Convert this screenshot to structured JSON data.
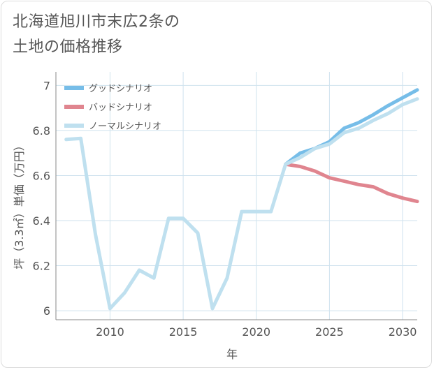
{
  "header": {
    "title": "北海道旭川市末広2条の\n土地の価格推移"
  },
  "colors": {
    "good": "#76bde8",
    "bad": "#e0858f",
    "normal": "#bfe0ef",
    "grid": "#cfe2ee",
    "axis": "#888888"
  },
  "chart_data": {
    "type": "line",
    "title": "北海道旭川市末広2条の土地の価格推移",
    "xlabel": "年",
    "ylabel": "坪（3.3㎡）単価（万円）",
    "xlim": [
      2006.3,
      2031
    ],
    "ylim": [
      5.96,
      7.06
    ],
    "x_ticks": [
      2010,
      2015,
      2020,
      2025,
      2030
    ],
    "y_ticks": [
      6,
      6.2,
      6.4,
      6.6,
      6.8,
      7
    ],
    "grid": true,
    "legend_position": "top-left",
    "series": [
      {
        "name": "グッドシナリオ",
        "x": [
          2022,
          2023,
          2024,
          2025,
          2026,
          2027,
          2028,
          2029,
          2030,
          2031
        ],
        "y": [
          6.65,
          6.7,
          6.72,
          6.75,
          6.81,
          6.835,
          6.87,
          6.91,
          6.945,
          6.98
        ]
      },
      {
        "name": "バッドシナリオ",
        "x": [
          2022,
          2023,
          2024,
          2025,
          2026,
          2027,
          2028,
          2029,
          2030,
          2031
        ],
        "y": [
          6.65,
          6.64,
          6.62,
          6.59,
          6.575,
          6.56,
          6.55,
          6.52,
          6.5,
          6.485
        ]
      },
      {
        "name": "ノーマルシナリオ",
        "x": [
          2007,
          2008,
          2009,
          2010,
          2011,
          2012,
          2013,
          2014,
          2015,
          2016,
          2017,
          2018,
          2019,
          2020,
          2021,
          2022,
          2023,
          2024,
          2025,
          2026,
          2027,
          2028,
          2029,
          2030,
          2031
        ],
        "y": [
          6.76,
          6.765,
          6.34,
          6.01,
          6.08,
          6.18,
          6.145,
          6.41,
          6.41,
          6.345,
          6.01,
          6.145,
          6.44,
          6.44,
          6.44,
          6.65,
          6.68,
          6.72,
          6.74,
          6.79,
          6.81,
          6.845,
          6.875,
          6.915,
          6.94
        ]
      }
    ]
  }
}
